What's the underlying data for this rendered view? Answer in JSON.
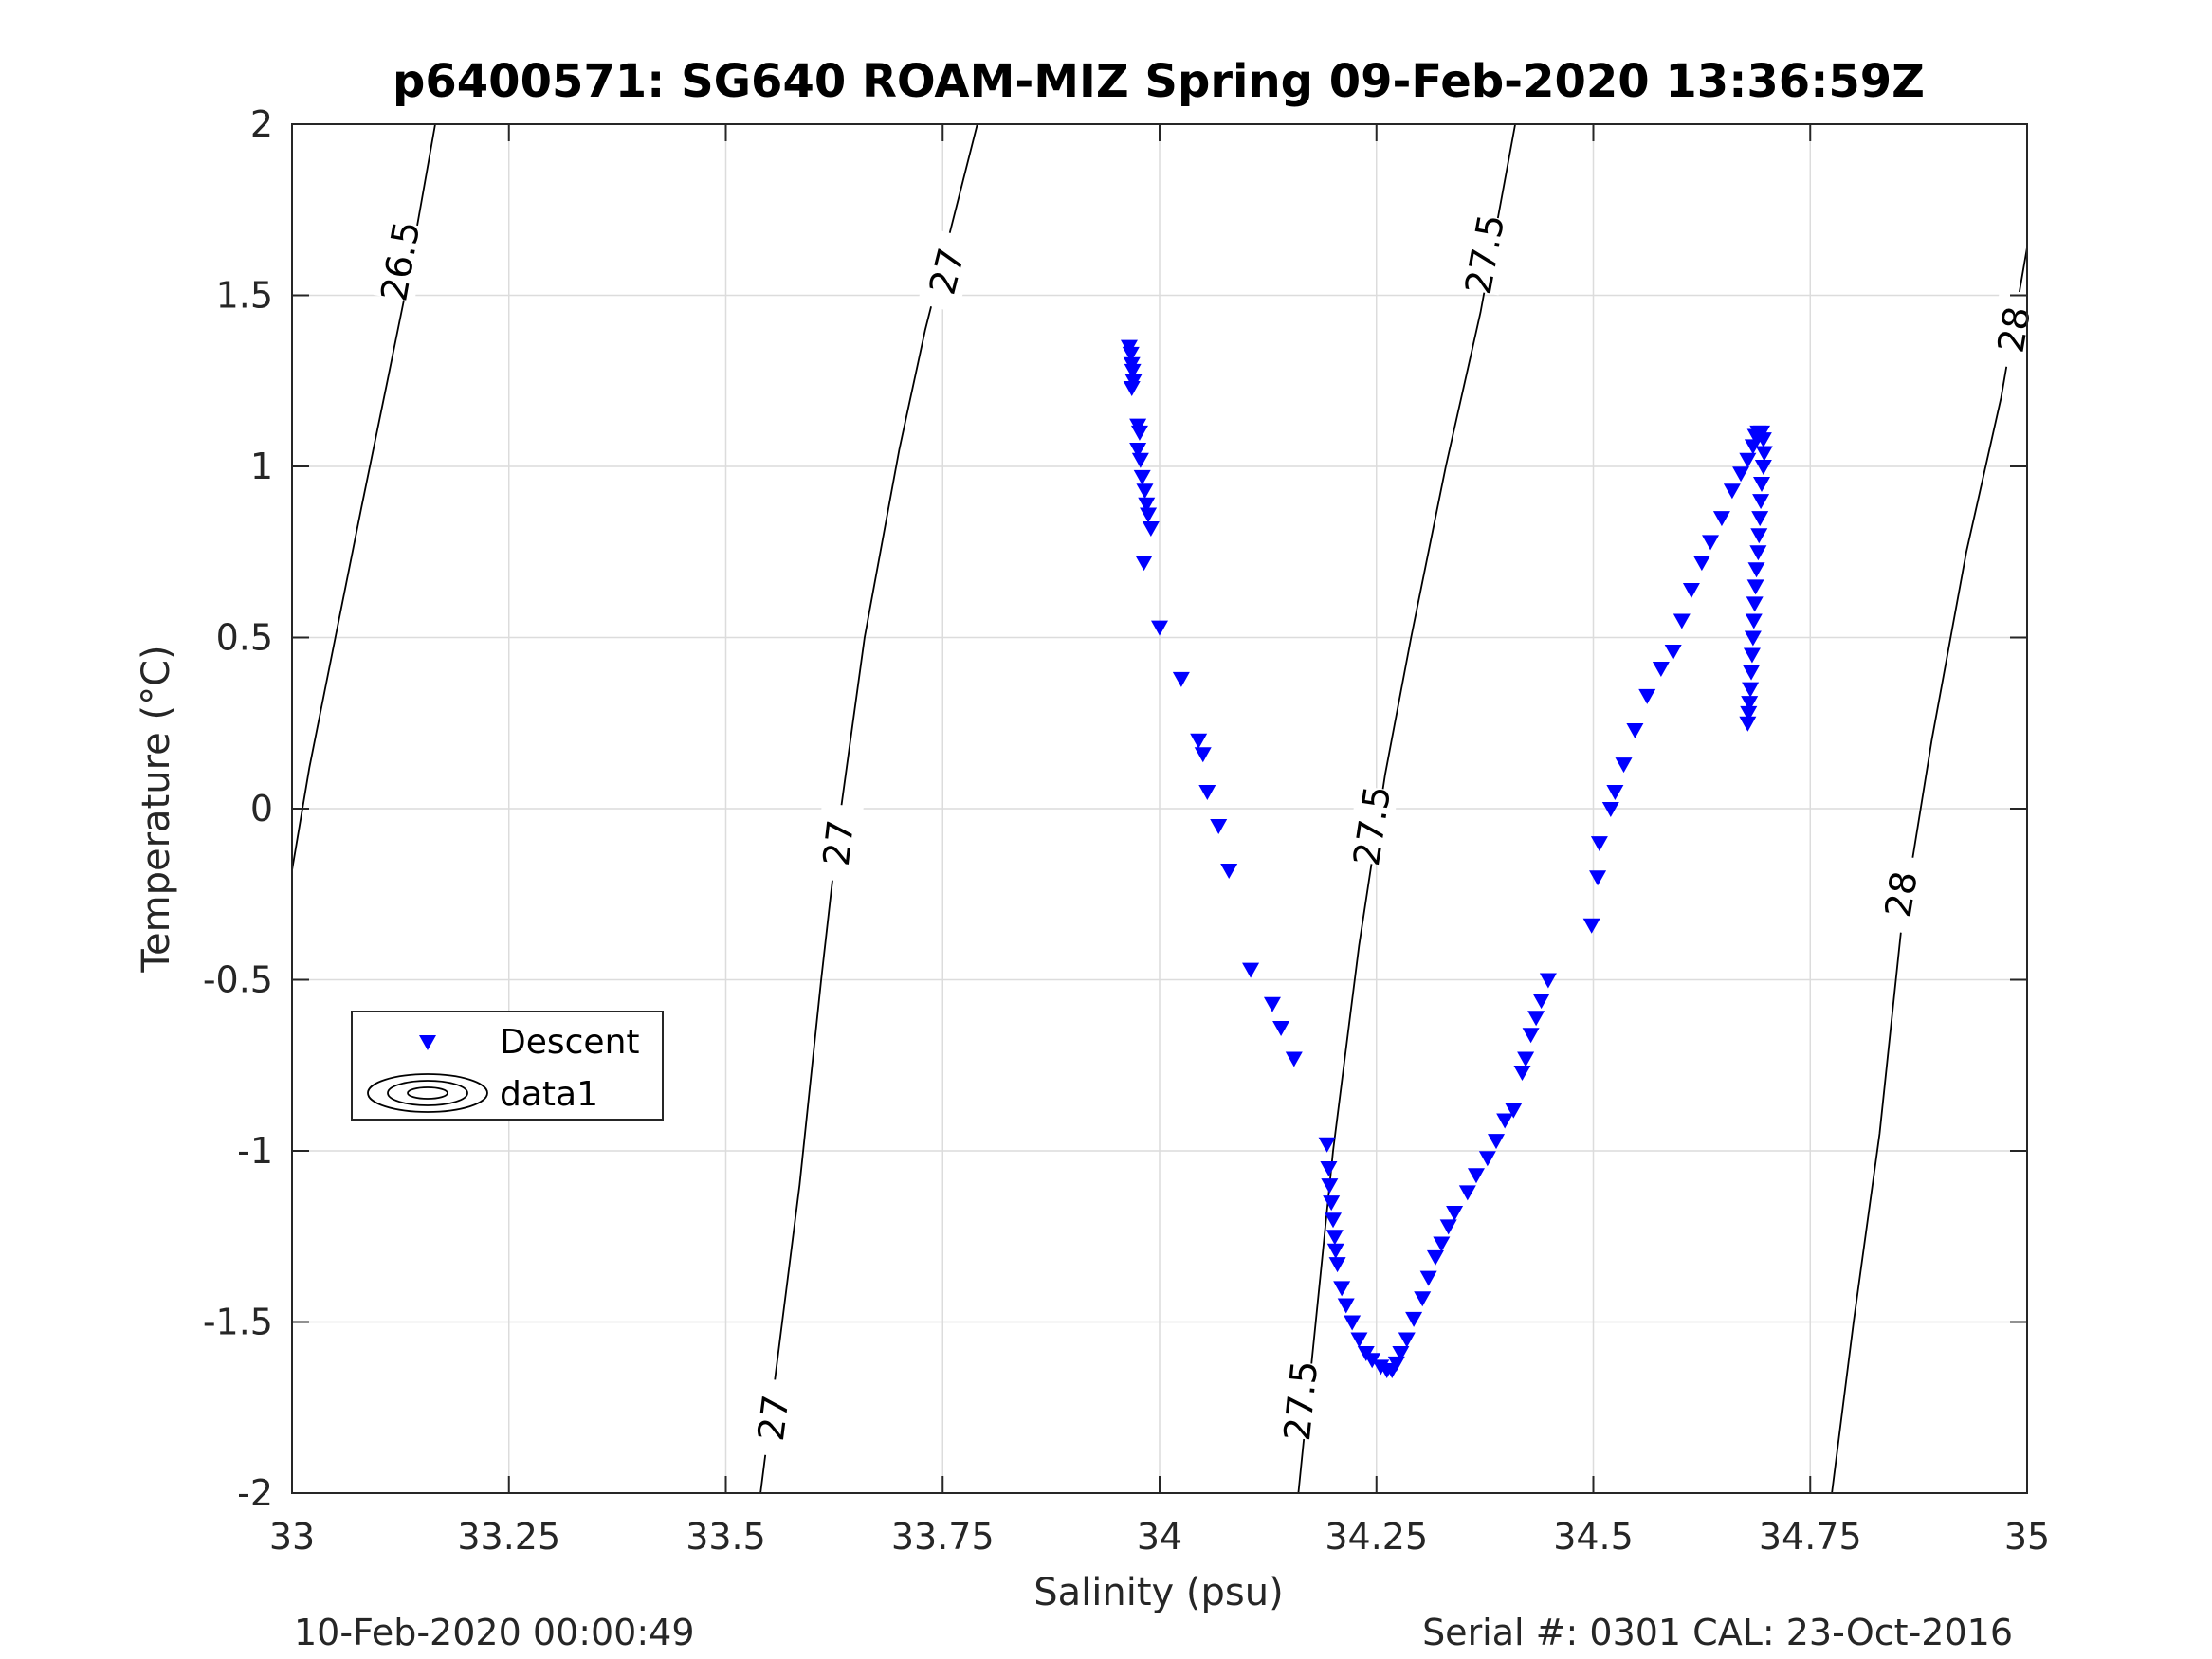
{
  "chart_data": {
    "type": "scatter",
    "title": "p6400571: SG640 ROAM-MIZ Spring 09-Feb-2020 13:36:59Z",
    "xlabel": "Salinity (psu)",
    "ylabel": "Temperature (°C)",
    "xlim": [
      33,
      35
    ],
    "ylim": [
      -2,
      2
    ],
    "xticks": [
      33,
      33.25,
      33.5,
      33.75,
      34,
      34.25,
      34.5,
      34.75,
      35
    ],
    "xtick_labels": [
      "33",
      "33.25",
      "33.5",
      "33.75",
      "34",
      "34.25",
      "34.5",
      "34.75",
      "35"
    ],
    "yticks": [
      -2,
      -1.5,
      -1,
      -0.5,
      0,
      0.5,
      1,
      1.5,
      2
    ],
    "ytick_labels": [
      "-2",
      "-1.5",
      "-1",
      "-0.5",
      "0",
      "0.5",
      "1",
      "1.5",
      "2"
    ],
    "grid": true,
    "legend_position": "lower-left",
    "legend": [
      {
        "label": "Descent",
        "marker": "down-triangle",
        "color": "#0000ff"
      },
      {
        "label": "data1",
        "marker": "contour-lines",
        "color": "#000000"
      }
    ],
    "series": [
      {
        "name": "Descent",
        "marker": "down-triangle",
        "color": "#0000ff",
        "points": [
          [
            33.965,
            1.35
          ],
          [
            33.967,
            1.33
          ],
          [
            33.968,
            1.3
          ],
          [
            33.969,
            1.28
          ],
          [
            33.97,
            1.25
          ],
          [
            33.968,
            1.23
          ],
          [
            33.975,
            1.12
          ],
          [
            33.977,
            1.1
          ],
          [
            33.975,
            1.05
          ],
          [
            33.978,
            1.02
          ],
          [
            33.98,
            0.97
          ],
          [
            33.983,
            0.93
          ],
          [
            33.985,
            0.89
          ],
          [
            33.987,
            0.86
          ],
          [
            33.99,
            0.82
          ],
          [
            33.982,
            0.72
          ],
          [
            34.0,
            0.53
          ],
          [
            34.025,
            0.38
          ],
          [
            34.045,
            0.2
          ],
          [
            34.05,
            0.16
          ],
          [
            34.055,
            0.05
          ],
          [
            34.068,
            -0.05
          ],
          [
            34.08,
            -0.18
          ],
          [
            34.105,
            -0.47
          ],
          [
            34.13,
            -0.57
          ],
          [
            34.14,
            -0.64
          ],
          [
            34.155,
            -0.73
          ],
          [
            34.193,
            -0.98
          ],
          [
            34.195,
            -1.05
          ],
          [
            34.196,
            -1.1
          ],
          [
            34.198,
            -1.15
          ],
          [
            34.2,
            -1.2
          ],
          [
            34.202,
            -1.25
          ],
          [
            34.203,
            -1.29
          ],
          [
            34.205,
            -1.33
          ],
          [
            34.21,
            -1.4
          ],
          [
            34.215,
            -1.45
          ],
          [
            34.222,
            -1.5
          ],
          [
            34.23,
            -1.55
          ],
          [
            34.238,
            -1.59
          ],
          [
            34.245,
            -1.61
          ],
          [
            34.255,
            -1.63
          ],
          [
            34.262,
            -1.64
          ],
          [
            34.268,
            -1.64
          ],
          [
            34.273,
            -1.62
          ],
          [
            34.278,
            -1.59
          ],
          [
            34.285,
            -1.55
          ],
          [
            34.293,
            -1.49
          ],
          [
            34.303,
            -1.43
          ],
          [
            34.31,
            -1.37
          ],
          [
            34.318,
            -1.31
          ],
          [
            34.325,
            -1.27
          ],
          [
            34.333,
            -1.22
          ],
          [
            34.34,
            -1.18
          ],
          [
            34.355,
            -1.12
          ],
          [
            34.365,
            -1.07
          ],
          [
            34.378,
            -1.02
          ],
          [
            34.388,
            -0.97
          ],
          [
            34.398,
            -0.91
          ],
          [
            34.408,
            -0.88
          ],
          [
            34.418,
            -0.77
          ],
          [
            34.422,
            -0.73
          ],
          [
            34.428,
            -0.66
          ],
          [
            34.434,
            -0.61
          ],
          [
            34.44,
            -0.56
          ],
          [
            34.448,
            -0.5
          ],
          [
            34.498,
            -0.34
          ],
          [
            34.505,
            -0.2
          ],
          [
            34.507,
            -0.1
          ],
          [
            34.52,
            0.0
          ],
          [
            34.525,
            0.05
          ],
          [
            34.535,
            0.13
          ],
          [
            34.548,
            0.23
          ],
          [
            34.562,
            0.33
          ],
          [
            34.578,
            0.41
          ],
          [
            34.592,
            0.46
          ],
          [
            34.602,
            0.55
          ],
          [
            34.613,
            0.64
          ],
          [
            34.625,
            0.72
          ],
          [
            34.635,
            0.78
          ],
          [
            34.648,
            0.85
          ],
          [
            34.66,
            0.93
          ],
          [
            34.67,
            0.98
          ],
          [
            34.678,
            1.02
          ],
          [
            34.684,
            1.06
          ],
          [
            34.687,
            1.09
          ],
          [
            34.69,
            1.1
          ],
          [
            34.694,
            1.1
          ],
          [
            34.696,
            1.08
          ],
          [
            34.697,
            1.04
          ],
          [
            34.696,
            1.0
          ],
          [
            34.694,
            0.95
          ],
          [
            34.693,
            0.9
          ],
          [
            34.692,
            0.85
          ],
          [
            34.691,
            0.8
          ],
          [
            34.69,
            0.75
          ],
          [
            34.688,
            0.7
          ],
          [
            34.687,
            0.65
          ],
          [
            34.686,
            0.6
          ],
          [
            34.685,
            0.55
          ],
          [
            34.684,
            0.5
          ],
          [
            34.683,
            0.45
          ],
          [
            34.682,
            0.4
          ],
          [
            34.681,
            0.35
          ],
          [
            34.68,
            0.31
          ],
          [
            34.679,
            0.28
          ],
          [
            34.678,
            0.25
          ]
        ]
      }
    ],
    "isopycnals": [
      {
        "label": "26.5",
        "points": [
          [
            33.0,
            -0.18
          ],
          [
            33.02,
            0.12
          ],
          [
            33.05,
            0.5
          ],
          [
            33.08,
            0.88
          ],
          [
            33.11,
            1.25
          ],
          [
            33.13,
            1.5
          ],
          [
            33.165,
            2.0
          ]
        ],
        "label_positions": [
          [
            33.125,
            1.6
          ]
        ]
      },
      {
        "label": "27",
        "points": [
          [
            33.54,
            -2.0
          ],
          [
            33.56,
            -1.6
          ],
          [
            33.585,
            -1.1
          ],
          [
            33.61,
            -0.5
          ],
          [
            33.63,
            -0.05
          ],
          [
            33.66,
            0.5
          ],
          [
            33.7,
            1.05
          ],
          [
            33.73,
            1.4
          ],
          [
            33.79,
            2.0
          ]
        ],
        "label_positions": [
          [
            33.555,
            -1.78
          ],
          [
            33.63,
            -0.1
          ],
          [
            33.755,
            1.57
          ]
        ]
      },
      {
        "label": "27.5",
        "points": [
          [
            34.16,
            -2.0
          ],
          [
            34.18,
            -1.5
          ],
          [
            34.2,
            -1.0
          ],
          [
            34.23,
            -0.4
          ],
          [
            34.26,
            0.1
          ],
          [
            34.29,
            0.5
          ],
          [
            34.33,
            1.0
          ],
          [
            34.37,
            1.45
          ],
          [
            34.41,
            2.0
          ]
        ],
        "label_positions": [
          [
            34.163,
            -1.73
          ],
          [
            34.245,
            -0.05
          ],
          [
            34.375,
            1.62
          ]
        ]
      },
      {
        "label": "28",
        "points": [
          [
            34.775,
            -2.0
          ],
          [
            34.8,
            -1.5
          ],
          [
            34.83,
            -0.95
          ],
          [
            34.855,
            -0.35
          ],
          [
            34.89,
            0.2
          ],
          [
            34.93,
            0.75
          ],
          [
            34.97,
            1.2
          ],
          [
            35.0,
            1.64
          ]
        ],
        "label_positions": [
          [
            34.855,
            -0.25
          ],
          [
            34.985,
            1.4
          ]
        ]
      }
    ]
  },
  "footer": {
    "timestamp": "10-Feb-2020 00:00:49",
    "serial_cal": "Serial #: 0301  CAL: 23-Oct-2016"
  }
}
